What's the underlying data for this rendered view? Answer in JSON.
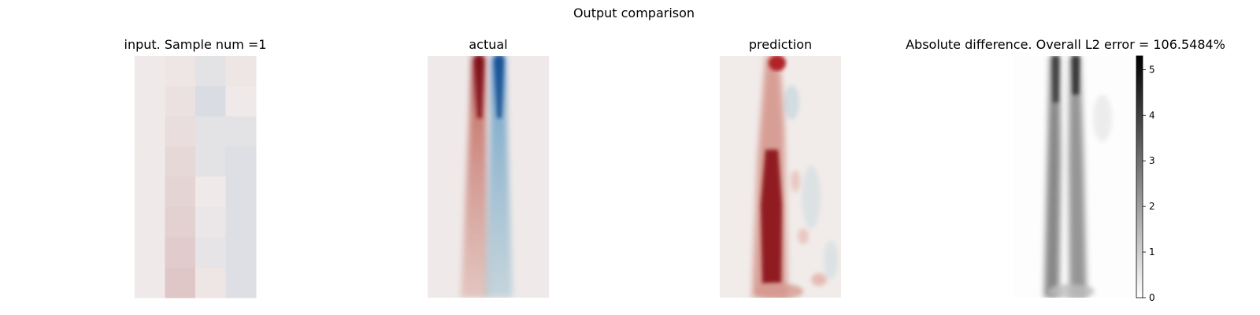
{
  "figure_title": "Output comparison",
  "colors": {
    "background": "#ffffff",
    "diverging_negative": "#1f5fae",
    "diverging_neutral": "#efeae9",
    "diverging_positive": "#8a0f1a",
    "grayscale_low": "#ffffff",
    "grayscale_high": "#000000"
  },
  "chart_data": [
    {
      "type": "heatmap",
      "title": "input. Sample num =1",
      "colormap": "diverging red-white-blue",
      "grid": false,
      "axes_visible": false,
      "columns": 4,
      "rows": 8,
      "values": [
        [
          0.0,
          0.01,
          -0.03,
          0.01
        ],
        [
          0.0,
          0.02,
          -0.05,
          0.0
        ],
        [
          0.0,
          0.03,
          -0.03,
          -0.03
        ],
        [
          0.0,
          0.04,
          -0.03,
          -0.04
        ],
        [
          0.0,
          0.05,
          0.0,
          -0.04
        ],
        [
          0.0,
          0.06,
          -0.01,
          -0.04
        ],
        [
          0.0,
          0.07,
          -0.02,
          -0.04
        ],
        [
          0.0,
          0.08,
          0.01,
          -0.04
        ]
      ]
    },
    {
      "type": "heatmap",
      "title": "actual",
      "colormap": "diverging red-white-blue",
      "grid": false,
      "axes_visible": false,
      "features": [
        {
          "name": "positive band",
          "x": 0.43,
          "sign": "positive",
          "top_intensity": 1.0,
          "bottom_intensity": 0.22,
          "top_width": 0.04,
          "bottom_width": 0.09
        },
        {
          "name": "negative band",
          "x": 0.59,
          "sign": "negative",
          "top_intensity": 1.0,
          "bottom_intensity": 0.3,
          "top_width": 0.04,
          "bottom_width": 0.09
        }
      ]
    },
    {
      "type": "heatmap",
      "title": "prediction",
      "colormap": "diverging red-white-blue",
      "grid": false,
      "axes_visible": false,
      "features": [
        {
          "name": "positive band",
          "x": 0.43,
          "sign": "positive",
          "intensity_top": 0.55,
          "intensity_bottom": 0.95
        },
        {
          "name": "top hot spot",
          "x": 0.5,
          "y": 0.04,
          "sign": "positive",
          "intensity": 0.95
        },
        {
          "name": "faint negative patches",
          "x": 0.75,
          "sign": "negative",
          "intensity": 0.12
        }
      ]
    },
    {
      "type": "heatmap",
      "title": "Absolute difference. Overall L2 error = 106.5484%",
      "colormap": "gray_r",
      "grid": false,
      "axes_visible": false,
      "colorbar": {
        "vmin": 0,
        "vmax": 5.3,
        "ticks": [
          "0",
          "1",
          "2",
          "3",
          "4",
          "5"
        ],
        "tick_values": [
          0,
          1,
          2,
          3,
          4,
          5
        ]
      },
      "features": [
        {
          "name": "left band",
          "x": 0.4,
          "value_top": 4.3,
          "value_bottom": 2.9
        },
        {
          "name": "right band",
          "x": 0.58,
          "value_top": 4.8,
          "value_bottom": 2.8
        }
      ]
    }
  ]
}
